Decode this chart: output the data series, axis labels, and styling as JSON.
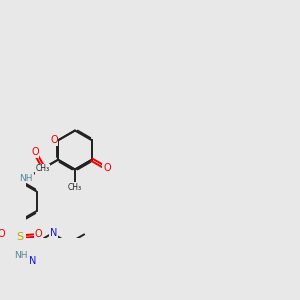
{
  "bg_color": "#e8e8e8",
  "bond_color": "#222222",
  "oxygen_color": "#ee0000",
  "nitrogen_color": "#1111ee",
  "sulfur_color": "#bbaa00",
  "nh_color": "#558899",
  "lw": 1.4,
  "fig_w": 3.0,
  "fig_h": 3.0,
  "dpi": 100,
  "xlim": [
    0,
    14
  ],
  "ylim": [
    2,
    11
  ]
}
